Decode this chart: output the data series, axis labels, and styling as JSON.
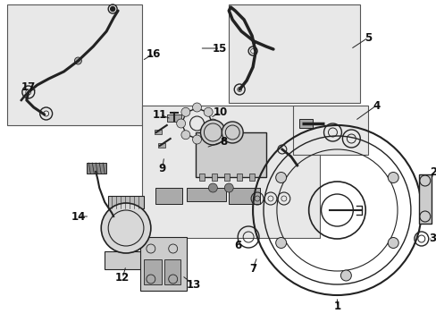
{
  "bg_color": "#ffffff",
  "fig_width": 4.89,
  "fig_height": 3.6,
  "dpi": 100,
  "box_gray": "#e8e8e8",
  "line_color": "#222222",
  "text_color": "#111111"
}
